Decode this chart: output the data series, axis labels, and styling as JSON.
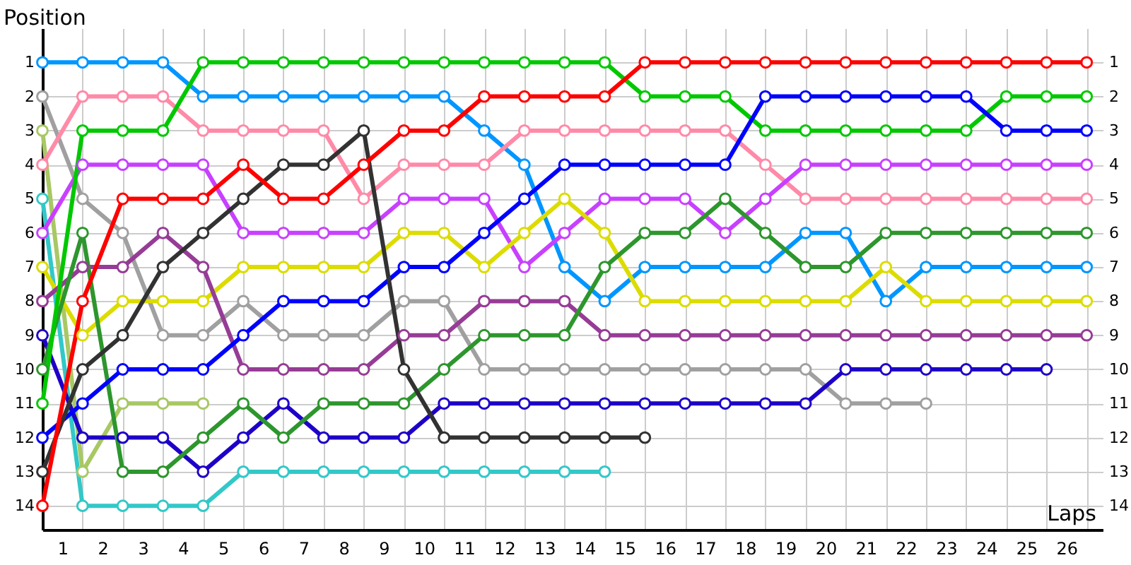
{
  "chart_data": {
    "type": "line",
    "xlabel": "Laps",
    "ylabel": "Position",
    "x": [
      0,
      1,
      2,
      3,
      4,
      5,
      6,
      7,
      8,
      9,
      10,
      11,
      12,
      13,
      14,
      15,
      16,
      17,
      18,
      19,
      20,
      21,
      22,
      23,
      24,
      25,
      26
    ],
    "xlim": [
      0,
      26.4
    ],
    "ylim": [
      14.7,
      0
    ],
    "y2lim": [
      14.7,
      0
    ],
    "xticks": [
      {
        "value": 1,
        "label": null
      },
      {
        "value": 2,
        "label": null
      },
      {
        "value": 3,
        "label": null
      },
      {
        "value": 4,
        "label": null
      },
      {
        "value": 5,
        "label": null
      },
      {
        "value": 6,
        "label": null
      },
      {
        "value": 7,
        "label": null
      },
      {
        "value": 8,
        "label": null
      },
      {
        "value": 9,
        "label": null
      },
      {
        "value": 10,
        "label": null
      },
      {
        "value": 11,
        "label": null
      },
      {
        "value": 12,
        "label": null
      },
      {
        "value": 13,
        "label": null
      },
      {
        "value": 14,
        "label": null
      },
      {
        "value": 15,
        "label": null
      },
      {
        "value": 16,
        "label": null
      },
      {
        "value": 17,
        "label": null
      },
      {
        "value": 18,
        "label": null
      },
      {
        "value": 19,
        "label": null
      },
      {
        "value": 20,
        "label": null
      },
      {
        "value": 21,
        "label": null
      },
      {
        "value": 22,
        "label": null
      },
      {
        "value": 23,
        "label": null
      },
      {
        "value": 24,
        "label": null
      },
      {
        "value": 25,
        "label": null
      },
      {
        "value": 26,
        "label": null
      },
      {
        "value": 0.5,
        "label": "1"
      },
      {
        "value": 1.5,
        "label": "2"
      },
      {
        "value": 2.5,
        "label": "3"
      },
      {
        "value": 3.5,
        "label": "4"
      },
      {
        "value": 4.5,
        "label": "5"
      },
      {
        "value": 5.5,
        "label": "6"
      },
      {
        "value": 6.5,
        "label": "7"
      },
      {
        "value": 7.5,
        "label": "8"
      },
      {
        "value": 8.5,
        "label": "9"
      },
      {
        "value": 9.5,
        "label": "10"
      },
      {
        "value": 10.5,
        "label": "11"
      },
      {
        "value": 11.5,
        "label": "12"
      },
      {
        "value": 12.5,
        "label": "13"
      },
      {
        "value": 13.5,
        "label": "14"
      },
      {
        "value": 14.5,
        "label": "15"
      },
      {
        "value": 15.5,
        "label": "16"
      },
      {
        "value": 16.5,
        "label": "17"
      },
      {
        "value": 17.5,
        "label": "18"
      },
      {
        "value": 18.5,
        "label": "19"
      },
      {
        "value": 19.5,
        "label": "20"
      },
      {
        "value": 20.5,
        "label": "21"
      },
      {
        "value": 21.5,
        "label": "22"
      },
      {
        "value": 22.5,
        "label": "23"
      },
      {
        "value": 23.5,
        "label": "24"
      },
      {
        "value": 24.5,
        "label": "25"
      },
      {
        "value": 25.5,
        "label": "26"
      }
    ],
    "yticks": [
      1,
      2,
      3,
      4,
      5,
      6,
      7,
      8,
      9,
      10,
      11,
      12,
      13,
      14
    ],
    "y2ticks": [
      1,
      2,
      3,
      4,
      5,
      6,
      7,
      8,
      9,
      10,
      11,
      12,
      13,
      14
    ],
    "grid": true,
    "marker": "circle",
    "line_style": "solid",
    "series": [
      {
        "color": "#0096ff",
        "values": [
          1,
          1,
          1,
          1,
          2,
          2,
          2,
          2,
          2,
          2,
          2,
          3,
          4,
          7,
          8,
          7,
          7,
          7,
          7,
          6,
          6,
          8,
          7,
          7,
          7,
          7,
          7
        ]
      },
      {
        "color": "#a0a0a0",
        "values": [
          2,
          5,
          6,
          9,
          9,
          8,
          9,
          9,
          9,
          8,
          8,
          10,
          10,
          10,
          10,
          10,
          10,
          10,
          10,
          10,
          11,
          11,
          11,
          null,
          null,
          null,
          null
        ]
      },
      {
        "color": "#a8c864",
        "values": [
          3,
          13,
          11,
          11,
          11,
          null,
          null,
          null,
          null,
          null,
          null,
          null,
          null,
          null,
          null,
          null,
          null,
          null,
          null,
          null,
          null,
          null,
          null,
          null,
          null,
          null,
          null
        ]
      },
      {
        "color": "#ff8aa8",
        "values": [
          4,
          2,
          2,
          2,
          3,
          3,
          3,
          3,
          5,
          4,
          4,
          4,
          3,
          3,
          3,
          3,
          3,
          3,
          4,
          5,
          5,
          5,
          5,
          5,
          5,
          5,
          5
        ]
      },
      {
        "color": "#32c8c8",
        "values": [
          5,
          14,
          14,
          14,
          14,
          13,
          13,
          13,
          13,
          13,
          13,
          13,
          13,
          13,
          13,
          null,
          null,
          null,
          null,
          null,
          null,
          null,
          null,
          null,
          null,
          null,
          null
        ]
      },
      {
        "color": "#c840ff",
        "values": [
          6,
          4,
          4,
          4,
          4,
          6,
          6,
          6,
          6,
          5,
          5,
          5,
          7,
          6,
          5,
          5,
          5,
          6,
          5,
          4,
          4,
          4,
          4,
          4,
          4,
          4,
          4
        ]
      },
      {
        "color": "#dcdc00",
        "values": [
          7,
          9,
          8,
          8,
          8,
          7,
          7,
          7,
          7,
          6,
          6,
          7,
          6,
          5,
          6,
          8,
          8,
          8,
          8,
          8,
          8,
          7,
          8,
          8,
          8,
          8,
          8
        ]
      },
      {
        "color": "#963c96",
        "values": [
          8,
          7,
          7,
          6,
          7,
          10,
          10,
          10,
          10,
          9,
          9,
          8,
          8,
          8,
          9,
          9,
          9,
          9,
          9,
          9,
          9,
          9,
          9,
          9,
          9,
          9,
          9
        ]
      },
      {
        "color": "#1e00c8",
        "values": [
          9,
          12,
          12,
          12,
          13,
          12,
          11,
          12,
          12,
          12,
          11,
          11,
          11,
          11,
          11,
          11,
          11,
          11,
          11,
          11,
          10,
          10,
          10,
          10,
          10,
          10,
          null
        ]
      },
      {
        "color": "#2d962d",
        "values": [
          10,
          6,
          13,
          13,
          12,
          11,
          12,
          11,
          11,
          11,
          10,
          9,
          9,
          9,
          7,
          6,
          6,
          5,
          6,
          7,
          7,
          6,
          6,
          6,
          6,
          6,
          6
        ]
      },
      {
        "color": "#00c800",
        "values": [
          11,
          3,
          3,
          3,
          1,
          1,
          1,
          1,
          1,
          1,
          1,
          1,
          1,
          1,
          1,
          2,
          2,
          2,
          3,
          3,
          3,
          3,
          3,
          3,
          2,
          2,
          2
        ]
      },
      {
        "color": "#0000ff",
        "values": [
          12,
          11,
          10,
          10,
          10,
          9,
          8,
          8,
          8,
          7,
          7,
          6,
          5,
          4,
          4,
          4,
          4,
          4,
          2,
          2,
          2,
          2,
          2,
          2,
          3,
          3,
          3
        ]
      },
      {
        "color": "#323232",
        "values": [
          13,
          10,
          9,
          7,
          6,
          5,
          4,
          4,
          3,
          10,
          12,
          12,
          12,
          12,
          12,
          12,
          null,
          null,
          null,
          null,
          null,
          null,
          null,
          null,
          null,
          null,
          null
        ]
      },
      {
        "color": "#ff0000",
        "values": [
          14,
          8,
          5,
          5,
          5,
          4,
          5,
          5,
          4,
          3,
          3,
          2,
          2,
          2,
          2,
          1,
          1,
          1,
          1,
          1,
          1,
          1,
          1,
          1,
          1,
          1,
          1
        ]
      }
    ]
  }
}
